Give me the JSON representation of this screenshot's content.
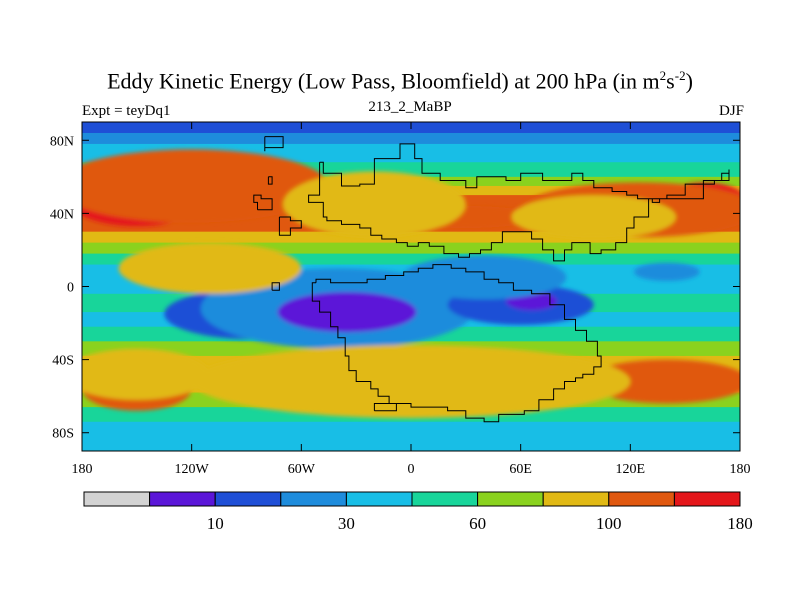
{
  "chart_data": {
    "type": "heatmap",
    "title_main": "Eddy Kinetic Energy (Low Pass, Bloomfield) at 200 hPa (in m",
    "title_sup1": "2",
    "title_mid": "s",
    "title_sup2": "-2",
    "title_end": ")",
    "left_subtitle": "Expt = teyDq1",
    "center_subtitle": "213_2_MaBP",
    "right_subtitle": "DJF",
    "x_ticks": [
      {
        "value": -180,
        "label": "180"
      },
      {
        "value": -120,
        "label": "120W"
      },
      {
        "value": -60,
        "label": "60W"
      },
      {
        "value": 0,
        "label": "0"
      },
      {
        "value": 60,
        "label": "60E"
      },
      {
        "value": 120,
        "label": "120E"
      },
      {
        "value": 180,
        "label": "180"
      }
    ],
    "y_ticks": [
      {
        "value": 80,
        "label": "80N"
      },
      {
        "value": 40,
        "label": "40N"
      },
      {
        "value": 0,
        "label": "0"
      },
      {
        "value": -40,
        "label": "40S"
      },
      {
        "value": -80,
        "label": "80S"
      }
    ],
    "xlim": [
      -180,
      180
    ],
    "ylim": [
      -90,
      90
    ],
    "colorbar": {
      "colors": [
        "#d3d3d3",
        "#5b16d8",
        "#1f4fd6",
        "#1e8cdc",
        "#18bee6",
        "#18d59a",
        "#8ad21e",
        "#e1b914",
        "#e0580f",
        "#e4161a"
      ],
      "labels": [
        {
          "after_box": 1,
          "text": "10"
        },
        {
          "after_box": 3,
          "text": "30"
        },
        {
          "after_box": 5,
          "text": "60"
        },
        {
          "after_box": 7,
          "text": "100"
        },
        {
          "after_box": 9,
          "text": "180"
        }
      ]
    },
    "regions": [
      {
        "level": 2,
        "lon": -85,
        "lat": -15,
        "rlon": 50,
        "rlat": 14
      },
      {
        "level": 1,
        "lon": -45,
        "lat": -15,
        "rlon": 32,
        "rlat": 9
      },
      {
        "level": 3,
        "lon": -40,
        "lat": -12,
        "rlon": 75,
        "rlat": 22
      },
      {
        "level": 1,
        "lon": -35,
        "lat": -14,
        "rlon": 38,
        "rlat": 11
      },
      {
        "level": 2,
        "lon": 60,
        "lat": -10,
        "rlon": 40,
        "rlat": 11
      },
      {
        "level": 1,
        "lon": 66,
        "lat": -8,
        "rlon": 14,
        "rlat": 5
      },
      {
        "level": 3,
        "lon": 40,
        "lat": 5,
        "rlon": 45,
        "rlat": 12
      },
      {
        "level": 3,
        "lon": 140,
        "lat": 8,
        "rlon": 18,
        "rlat": 5
      },
      {
        "level": 9,
        "lon": -150,
        "lat": 50,
        "rlon": 40,
        "rlat": 17
      },
      {
        "level": 9,
        "lon": 160,
        "lat": 45,
        "rlon": 25,
        "rlat": 12
      },
      {
        "level": 9,
        "lon": 75,
        "lat": 40,
        "rlon": 22,
        "rlat": 5
      },
      {
        "level": 8,
        "lon": -120,
        "lat": 55,
        "rlon": 75,
        "rlat": 20
      },
      {
        "level": 8,
        "lon": 125,
        "lat": 42,
        "rlon": 65,
        "rlat": 15
      },
      {
        "level": 8,
        "lon": -30,
        "lat": 38,
        "rlon": 30,
        "rlat": 10
      },
      {
        "level": 8,
        "lon": -150,
        "lat": -56,
        "rlon": 30,
        "rlat": 12
      },
      {
        "level": 9,
        "lon": 145,
        "lat": -52,
        "rlon": 30,
        "rlat": 8
      },
      {
        "level": 8,
        "lon": 140,
        "lat": -52,
        "rlon": 45,
        "rlat": 12
      },
      {
        "level": 8,
        "lon": 30,
        "lat": 38,
        "rlon": 40,
        "rlat": 6
      },
      {
        "level": 7,
        "lon": -110,
        "lat": 10,
        "rlon": 50,
        "rlat": 14
      },
      {
        "level": 7,
        "lon": -20,
        "lat": 45,
        "rlon": 50,
        "rlat": 18
      },
      {
        "level": 7,
        "lon": 100,
        "lat": 38,
        "rlon": 45,
        "rlat": 12
      },
      {
        "level": 7,
        "lon": 0,
        "lat": -52,
        "rlon": 120,
        "rlat": 20
      },
      {
        "level": 7,
        "lon": -150,
        "lat": -48,
        "rlon": 40,
        "rlat": 14
      }
    ]
  }
}
